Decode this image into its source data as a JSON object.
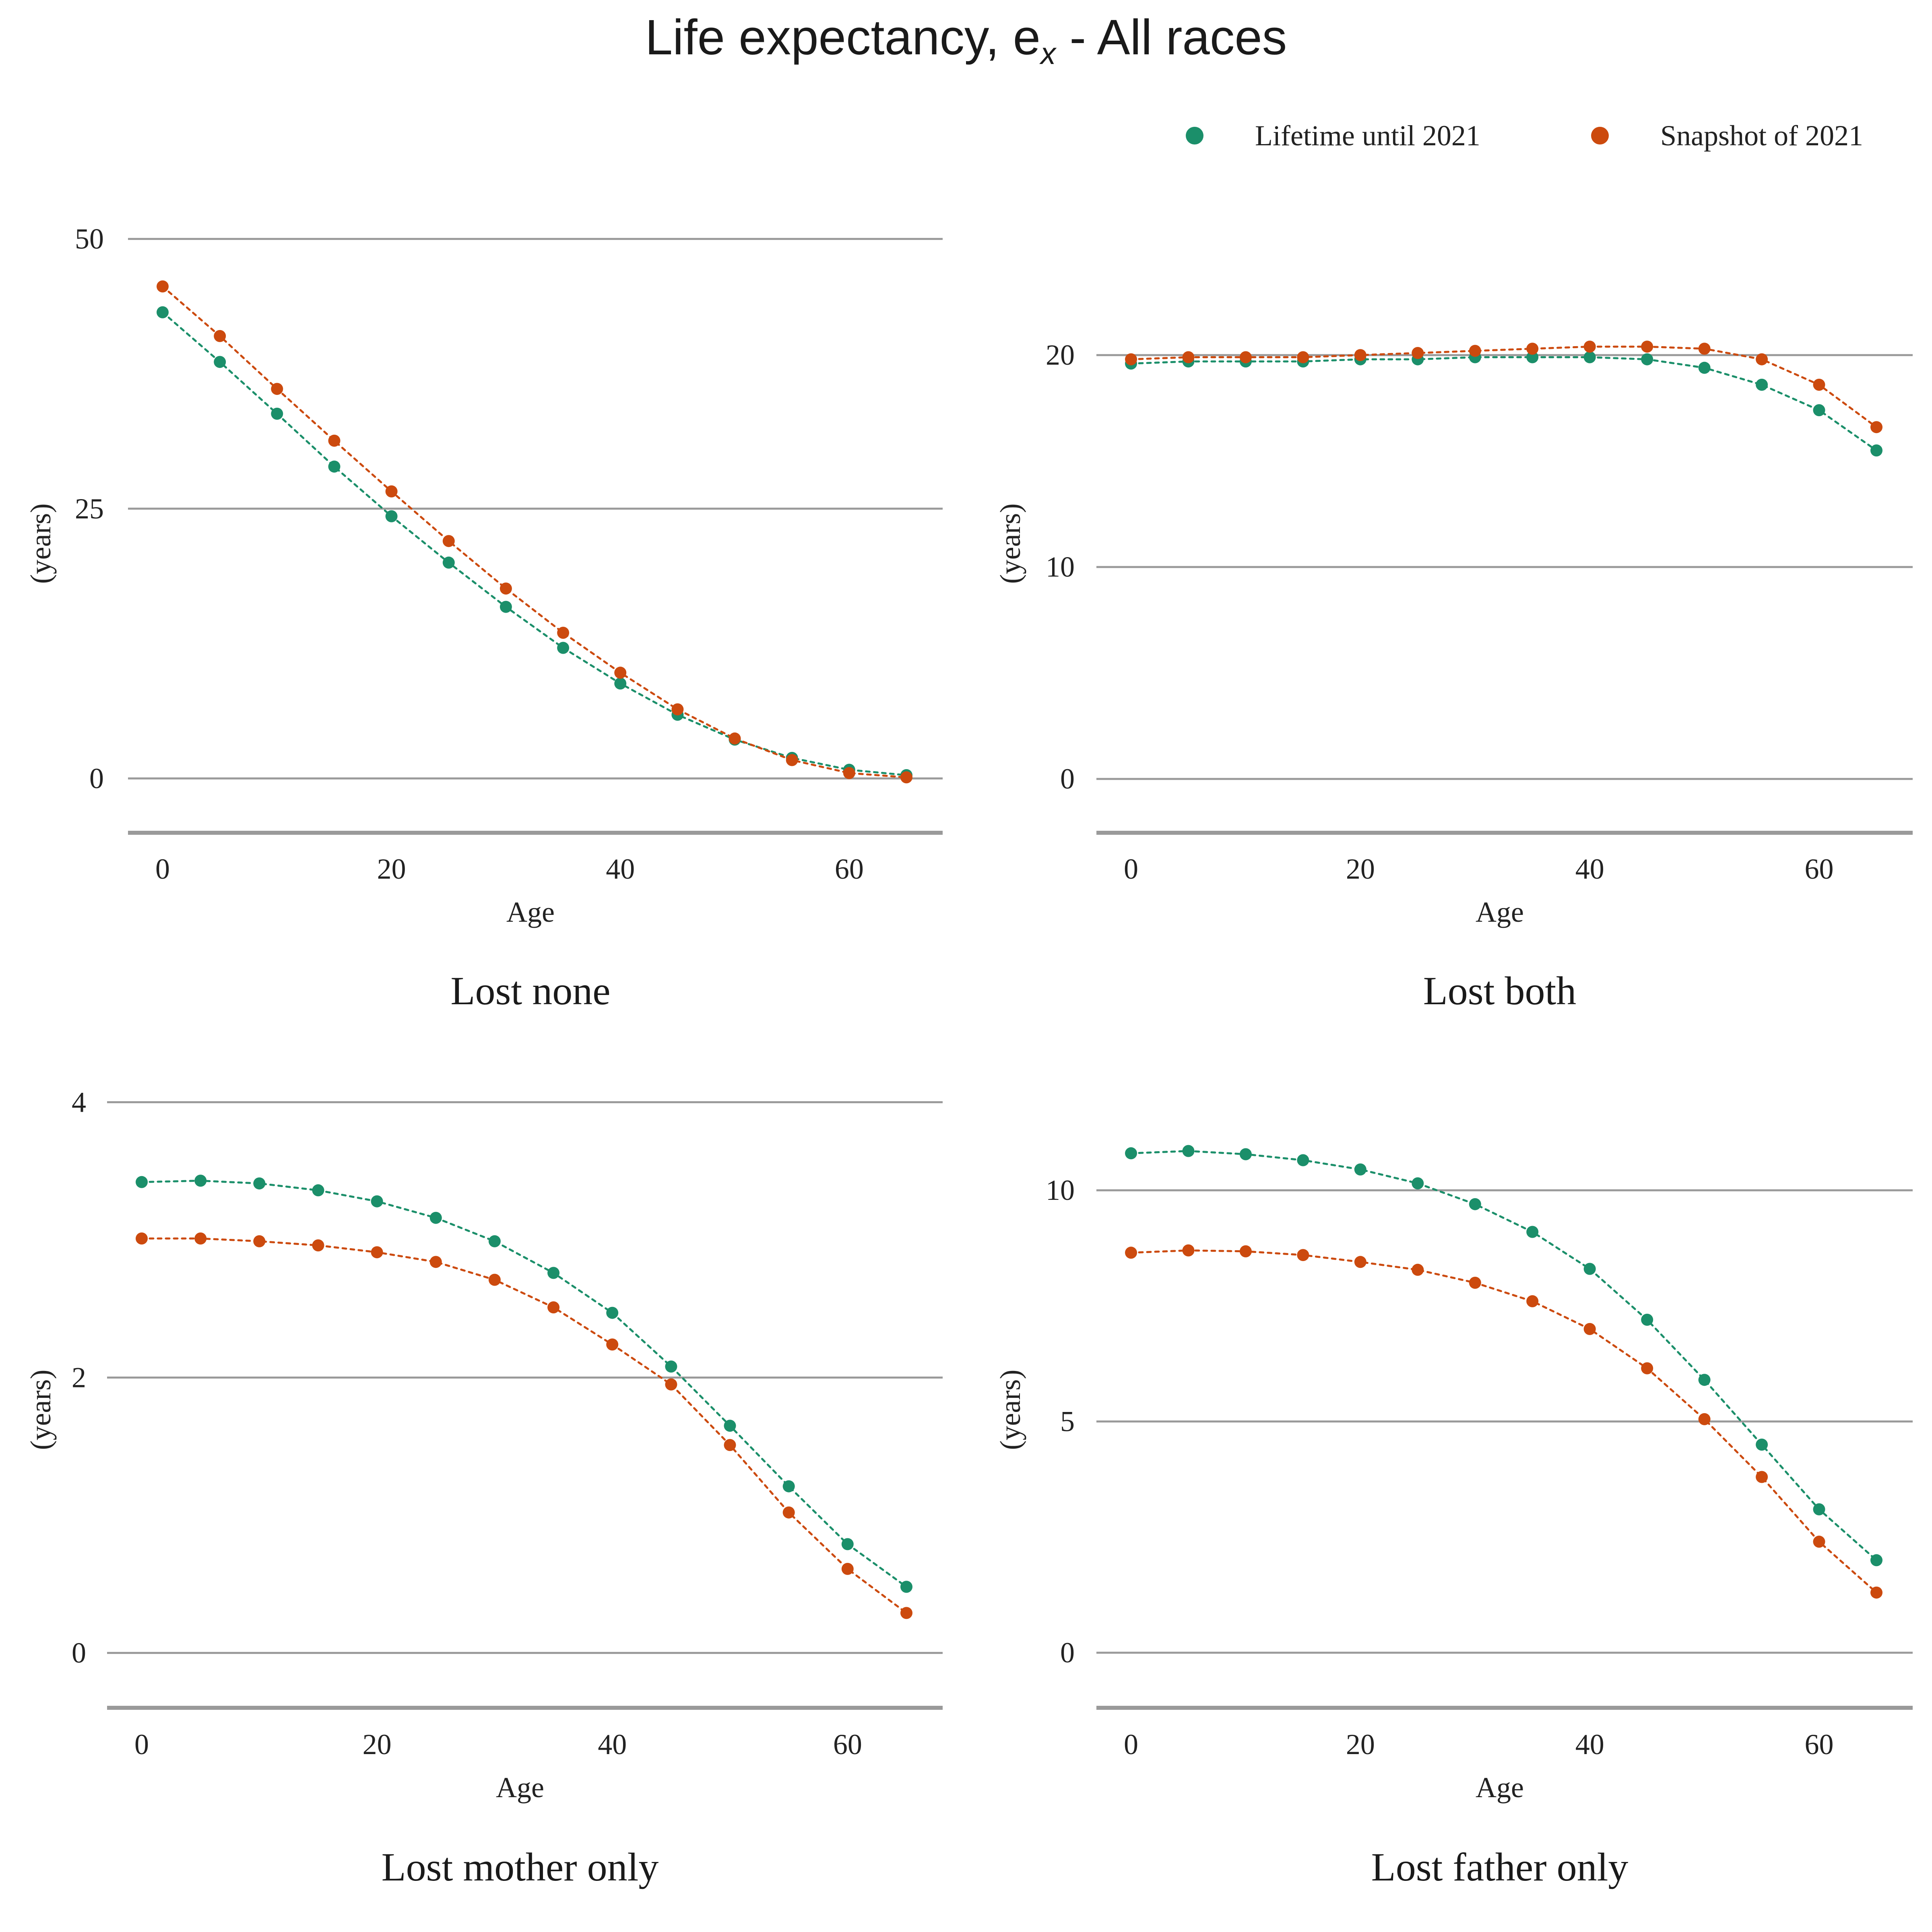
{
  "chart_data": {
    "type": "scatter",
    "title": "Life expectancy, e",
    "title_subscript": "x",
    "title_suffix": " - All races",
    "legend": {
      "placement": "top-right",
      "entries": [
        {
          "name": "Lifetime until 2021",
          "color": "#1b8f6a"
        },
        {
          "name": "Snapshot of 2021",
          "color": "#cc4a0e"
        }
      ]
    },
    "x_values": [
      0,
      5,
      10,
      15,
      20,
      25,
      30,
      35,
      40,
      45,
      50,
      55,
      60,
      65
    ],
    "panels": [
      {
        "title": "Lost none",
        "xlabel": "Age",
        "ylabel": "(years)",
        "xticks": [
          0,
          20,
          40,
          60
        ],
        "yticks": [
          0,
          25,
          50
        ],
        "ylim": [
          -2.5,
          52
        ],
        "grid": true,
        "series": [
          {
            "name": "Lifetime until 2021",
            "values": [
              43.2,
              38.6,
              33.8,
              28.9,
              24.3,
              20.0,
              15.9,
              12.1,
              8.8,
              5.9,
              3.6,
              1.9,
              0.8,
              0.3
            ]
          },
          {
            "name": "Snapshot of 2021",
            "values": [
              45.6,
              41.0,
              36.1,
              31.3,
              26.6,
              22.0,
              17.6,
              13.5,
              9.8,
              6.4,
              3.7,
              1.7,
              0.5,
              0.1
            ]
          }
        ]
      },
      {
        "title": "Lost both",
        "xlabel": "Age",
        "ylabel": "(years)",
        "xticks": [
          0,
          20,
          40,
          60
        ],
        "yticks": [
          0,
          10,
          20
        ],
        "ylim": [
          -1.25,
          26.5
        ],
        "grid": true,
        "series": [
          {
            "name": "Lifetime until 2021",
            "values": [
              19.6,
              19.7,
              19.7,
              19.7,
              19.8,
              19.8,
              19.9,
              19.9,
              19.9,
              19.8,
              19.4,
              18.6,
              17.4,
              15.5
            ]
          },
          {
            "name": "Snapshot of 2021",
            "values": [
              19.8,
              19.9,
              19.9,
              19.9,
              20.0,
              20.1,
              20.2,
              20.3,
              20.4,
              20.4,
              20.3,
              19.8,
              18.6,
              16.6
            ]
          }
        ]
      },
      {
        "title": "Lost mother only",
        "xlabel": "Age",
        "ylabel": "(years)",
        "xticks": [
          0,
          20,
          40,
          60
        ],
        "yticks": [
          0,
          2,
          4
        ],
        "ylim": [
          -0.2,
          4.2
        ],
        "grid": true,
        "series": [
          {
            "name": "Lifetime until 2021",
            "values": [
              3.42,
              3.43,
              3.41,
              3.36,
              3.28,
              3.16,
              2.99,
              2.76,
              2.47,
              2.08,
              1.65,
              1.21,
              0.79,
              0.48
            ]
          },
          {
            "name": "Snapshot of 2021",
            "values": [
              3.01,
              3.01,
              2.99,
              2.96,
              2.91,
              2.84,
              2.71,
              2.51,
              2.24,
              1.95,
              1.51,
              1.02,
              0.61,
              0.29
            ]
          }
        ]
      },
      {
        "title": "Lost father only",
        "xlabel": "Age",
        "ylabel": "(years)",
        "xticks": [
          0,
          20,
          40,
          60
        ],
        "yticks": [
          0,
          5,
          10
        ],
        "ylim": [
          -0.6,
          12.5
        ],
        "grid": true,
        "series": [
          {
            "name": "Lifetime until 2021",
            "values": [
              10.8,
              10.85,
              10.78,
              10.65,
              10.45,
              10.15,
              9.7,
              9.1,
              8.3,
              7.2,
              5.9,
              4.5,
              3.1,
              2.0
            ]
          },
          {
            "name": "Snapshot of 2021",
            "values": [
              8.65,
              8.7,
              8.68,
              8.6,
              8.45,
              8.28,
              8.0,
              7.6,
              7.0,
              6.15,
              5.05,
              3.8,
              2.4,
              1.3
            ]
          }
        ]
      }
    ]
  }
}
